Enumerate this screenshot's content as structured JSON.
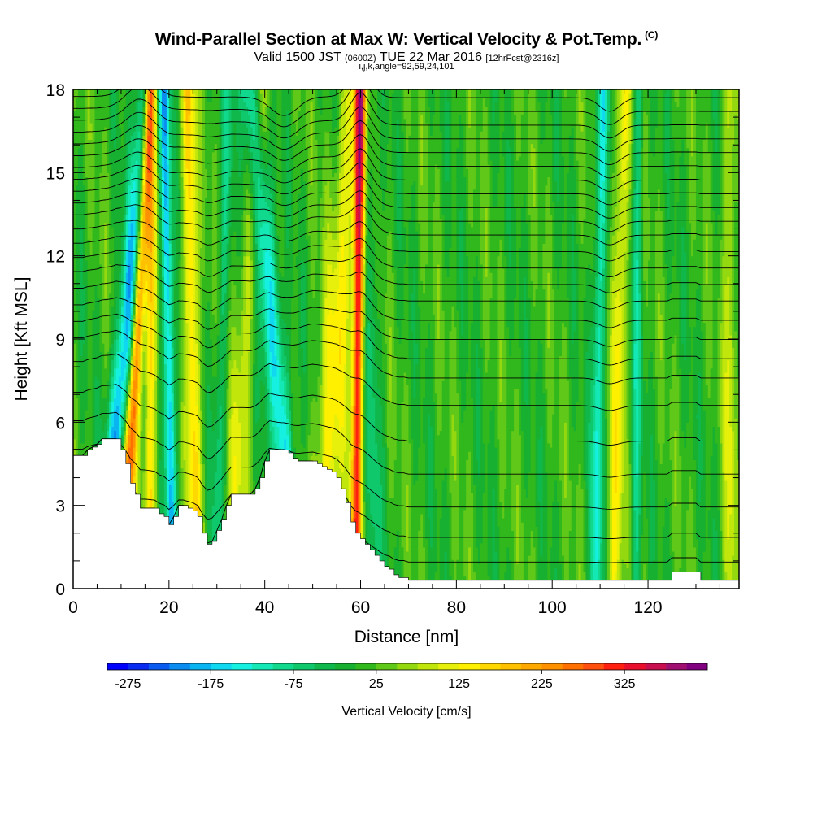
{
  "chart_data": {
    "type": "heatmap",
    "title": "Wind-Parallel Section at Max W: Vertical Velocity & Pot.Temp.",
    "title_mark": "(C)",
    "subtitle_main_a": "Valid 1500 JST",
    "subtitle_small_a": "(0600Z)",
    "subtitle_main_b": "TUE 22 Mar 2016",
    "subtitle_small_b": "[12hrFcst@2316z]",
    "subtitle_line2": "i,j,k,angle=92,59,24,101",
    "xlabel": "Distance [nm]",
    "ylabel": "Height [Kft MSL]",
    "xlim": [
      0,
      139
    ],
    "ylim": [
      0,
      18
    ],
    "x_ticks": [
      0,
      20,
      40,
      60,
      80,
      100,
      120
    ],
    "x_tick_labels": [
      "0",
      "20",
      "40",
      "60",
      "80",
      "100",
      "120"
    ],
    "y_ticks": [
      0,
      3,
      6,
      9,
      12,
      15,
      18
    ],
    "y_tick_labels": [
      "0",
      "3",
      "6",
      "9",
      "12",
      "15",
      "18"
    ],
    "colorbar": {
      "label": "Vertical Velocity [cm/s]",
      "tick_labels": [
        "-275",
        "-175",
        "-75",
        "25",
        "125",
        "225",
        "325"
      ],
      "bins": 29,
      "colors": [
        "#0000ff",
        "#0a2cf0",
        "#0a5cf0",
        "#0a8cf0",
        "#0ab4f0",
        "#10d8f0",
        "#16f0e0",
        "#14e8b4",
        "#10d88c",
        "#10c86c",
        "#10b84c",
        "#18b030",
        "#30b81c",
        "#60c818",
        "#94d810",
        "#c0e60c",
        "#e6f00a",
        "#fff000",
        "#ffd800",
        "#ffc000",
        "#ffa800",
        "#ff9000",
        "#ff7000",
        "#ff5010",
        "#ff2010",
        "#e8102c",
        "#c81050",
        "#a01070",
        "#800080"
      ]
    },
    "terrain_profile": {
      "x": [
        0,
        1,
        2,
        3,
        4,
        5,
        6,
        7,
        8,
        9,
        10,
        11,
        12,
        13,
        14,
        15,
        16,
        17,
        18,
        19,
        20,
        21,
        22,
        23,
        24,
        25,
        26,
        27,
        28,
        29,
        30,
        31,
        32,
        33,
        34,
        35,
        36,
        37,
        38,
        39,
        40,
        41,
        42,
        43,
        44,
        45,
        46,
        47,
        48,
        49,
        50,
        51,
        52,
        53,
        54,
        55,
        56,
        57,
        58,
        59,
        60,
        61,
        62,
        63,
        64,
        65,
        66,
        67,
        68,
        69,
        70,
        71,
        72,
        73,
        74,
        75,
        76,
        77,
        78,
        79,
        80,
        81,
        82,
        83,
        84,
        85,
        86,
        87,
        88,
        89,
        90,
        91,
        92,
        93,
        94,
        95,
        96,
        97,
        98,
        99,
        100,
        101,
        102,
        103,
        104,
        105,
        106,
        107,
        108,
        109,
        110,
        111,
        112,
        113,
        114,
        115,
        116,
        117,
        118,
        119,
        120,
        121,
        122,
        123,
        124,
        125,
        126,
        127,
        128,
        129,
        130,
        131,
        132,
        133,
        134,
        135,
        136,
        137,
        138,
        139
      ],
      "y": [
        4.8,
        4.8,
        4.8,
        5.0,
        5.1,
        5.2,
        5.4,
        5.4,
        5.4,
        5.4,
        5.0,
        4.5,
        3.8,
        3.4,
        2.9,
        2.9,
        2.9,
        2.9,
        2.7,
        2.6,
        2.3,
        2.6,
        3.0,
        3.0,
        2.9,
        2.8,
        2.6,
        2.0,
        1.6,
        1.7,
        2.1,
        2.5,
        3.0,
        3.4,
        3.4,
        3.4,
        3.4,
        3.4,
        3.6,
        4.0,
        4.6,
        5.0,
        5.0,
        5.0,
        5.0,
        4.9,
        4.7,
        4.6,
        4.6,
        4.6,
        4.6,
        4.5,
        4.4,
        4.3,
        4.2,
        4.0,
        3.6,
        3.1,
        2.4,
        2.0,
        1.8,
        1.6,
        1.4,
        1.2,
        1.0,
        0.8,
        0.7,
        0.5,
        0.4,
        0.4,
        0.3,
        0.3,
        0.3,
        0.3,
        0.3,
        0.3,
        0.3,
        0.3,
        0.3,
        0.3,
        0.3,
        0.3,
        0.3,
        0.3,
        0.3,
        0.3,
        0.3,
        0.3,
        0.3,
        0.3,
        0.3,
        0.3,
        0.3,
        0.3,
        0.3,
        0.3,
        0.3,
        0.3,
        0.3,
        0.3,
        0.3,
        0.3,
        0.3,
        0.3,
        0.3,
        0.3,
        0.3,
        0.3,
        0.3,
        0.3,
        0.3,
        0.3,
        0.3,
        0.3,
        0.3,
        0.3,
        0.3,
        0.3,
        0.3,
        0.3,
        0.3,
        0.3,
        0.3,
        0.3,
        0.3,
        0.6,
        0.6,
        0.6,
        0.6,
        0.6,
        0.6,
        0.3,
        0.3,
        0.3,
        0.3,
        0.3,
        0.3,
        0.3,
        0.3,
        0.3
      ]
    },
    "wave_structures": [
      {
        "x_base": 9,
        "x_tilt": 6.5,
        "width": 2.0,
        "value": -220
      },
      {
        "x_base": 11.5,
        "x_tilt": 4.5,
        "width": 1.3,
        "value": 300
      },
      {
        "x_base": 16,
        "x_tilt": 0.3,
        "width": 1.3,
        "value": 150
      },
      {
        "x_base": 20.5,
        "x_tilt": -1.5,
        "width": 1.1,
        "value": -200
      },
      {
        "x_base": 25.5,
        "x_tilt": -1.5,
        "width": 1.5,
        "value": 160
      },
      {
        "x_base": 30,
        "x_tilt": 2.5,
        "width": 1.3,
        "value": -70
      },
      {
        "x_base": 34,
        "x_tilt": 5,
        "width": 2.2,
        "value": 90
      },
      {
        "x_base": 44,
        "x_tilt": -7,
        "width": 2.2,
        "value": -180
      },
      {
        "x_base": 53,
        "x_tilt": 6,
        "width": 3.2,
        "value": 120
      },
      {
        "x_base": 59,
        "x_tilt": 1,
        "width": 1.1,
        "value": 280
      },
      {
        "x_base": 63,
        "x_tilt": -1,
        "width": 1.5,
        "value": -60
      },
      {
        "x_base": 109,
        "x_tilt": 1.5,
        "width": 1.2,
        "value": -140
      },
      {
        "x_base": 113,
        "x_tilt": 2,
        "width": 1.5,
        "value": 120
      },
      {
        "x_base": 117.5,
        "x_tilt": 0.5,
        "width": 1.0,
        "value": -90
      },
      {
        "x_base": 137,
        "x_tilt": 0,
        "width": 1.2,
        "value": 90
      }
    ],
    "isentrope_heights_kft": [
      0.8,
      1.7,
      2.8,
      4.0,
      5.2,
      6.5,
      7.5,
      8.2,
      8.9,
      9.6,
      10.3,
      10.9,
      11.5,
      12.1,
      12.7,
      13.2,
      13.7,
      14.2,
      14.7,
      15.2,
      15.7,
      16.2,
      16.7,
      17.2,
      17.7
    ]
  }
}
